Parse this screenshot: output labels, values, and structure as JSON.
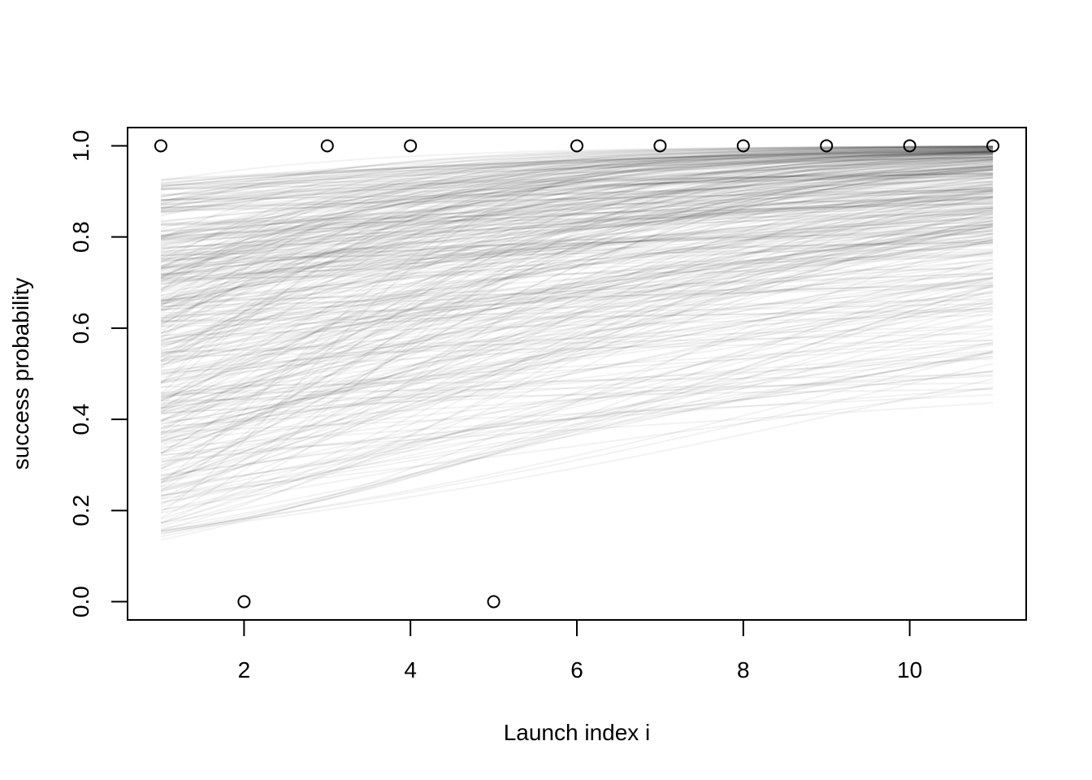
{
  "chart_data": {
    "type": "line",
    "title": "",
    "xlabel": "Launch index i",
    "ylabel": "success probability",
    "xlim": [
      0.6,
      11.4
    ],
    "ylim": [
      -0.04,
      1.04
    ],
    "x_ticks": [
      "2",
      "4",
      "6",
      "8",
      "10"
    ],
    "y_ticks": [
      "0.0",
      "0.2",
      "0.4",
      "0.6",
      "0.8",
      "1.0"
    ],
    "grid": false,
    "observations": {
      "x": [
        1,
        2,
        3,
        4,
        5,
        6,
        7,
        8,
        9,
        10,
        11
      ],
      "y": [
        1,
        0,
        1,
        1,
        0,
        1,
        1,
        1,
        1,
        1,
        1
      ]
    },
    "posterior_curves": {
      "count": 400,
      "x_range": [
        1,
        11
      ],
      "start_range": [
        0.13,
        0.93
      ],
      "end_range": [
        0.43,
        1.0
      ],
      "line_color": "#000000",
      "line_opacity": 0.05
    }
  }
}
